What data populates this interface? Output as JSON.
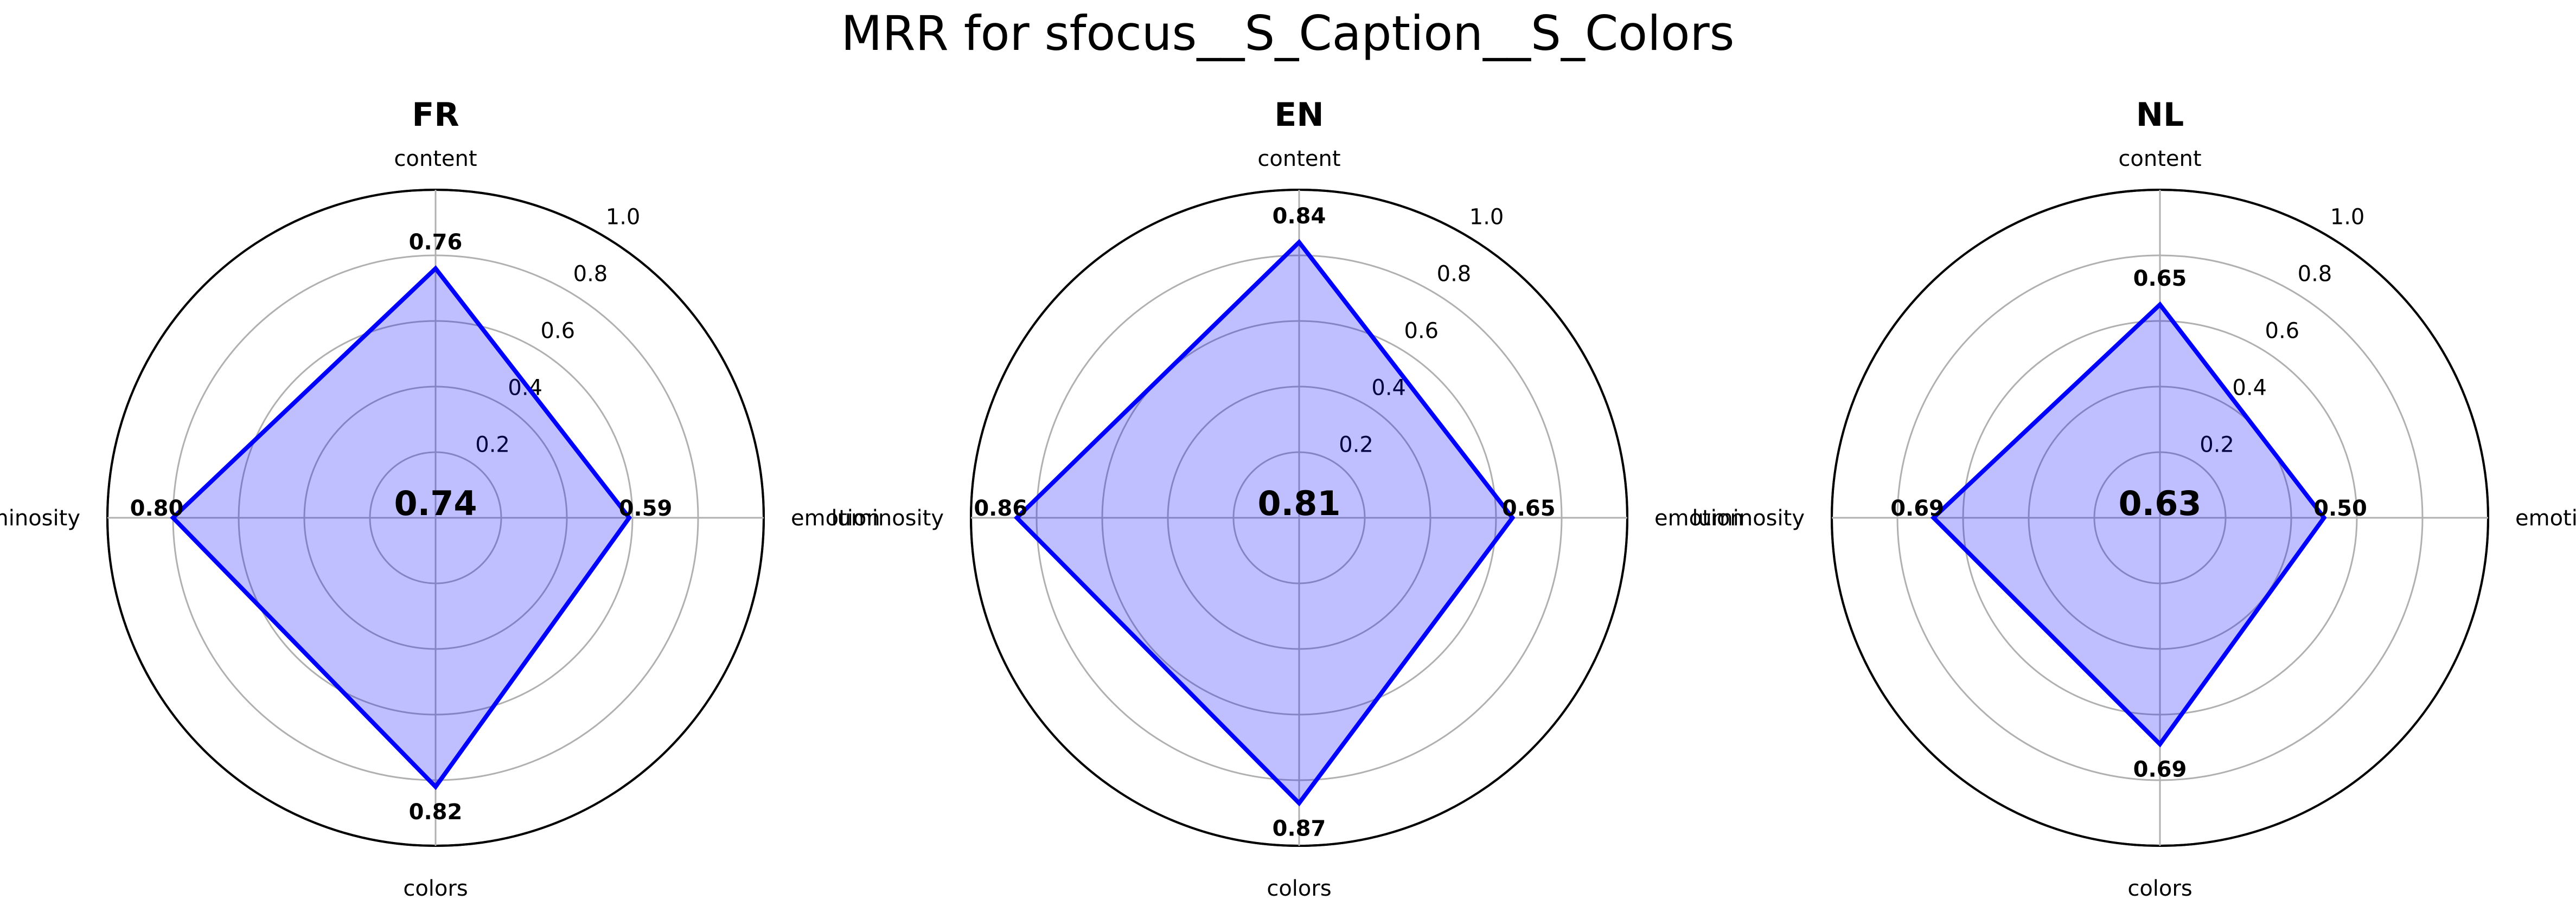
{
  "figure": {
    "title": "MRR for sfocus__S_Caption__S_Colors"
  },
  "colors": {
    "series": "#0000ff",
    "fill": "#0000ff"
  },
  "chart_data": [
    {
      "type": "radar",
      "title": "FR",
      "axes": [
        "content",
        "emotion",
        "colors",
        "luminosity"
      ],
      "values": [
        0.76,
        0.59,
        0.82,
        0.8
      ],
      "value_labels": [
        "0.76",
        "0.59",
        "0.82",
        "0.80"
      ],
      "center_value": "0.74",
      "rlim": [
        0,
        1.0
      ],
      "rticks": [
        "0.2",
        "0.4",
        "0.6",
        "0.8",
        "1.0"
      ],
      "grid": true
    },
    {
      "type": "radar",
      "title": "EN",
      "axes": [
        "content",
        "emotion",
        "colors",
        "luminosity"
      ],
      "values": [
        0.84,
        0.65,
        0.87,
        0.86
      ],
      "value_labels": [
        "0.84",
        "0.65",
        "0.87",
        "0.86"
      ],
      "center_value": "0.81",
      "rlim": [
        0,
        1.0
      ],
      "rticks": [
        "0.2",
        "0.4",
        "0.6",
        "0.8",
        "1.0"
      ],
      "grid": true
    },
    {
      "type": "radar",
      "title": "NL",
      "axes": [
        "content",
        "emotion",
        "colors",
        "luminosity"
      ],
      "values": [
        0.65,
        0.5,
        0.69,
        0.69
      ],
      "value_labels": [
        "0.65",
        "0.50",
        "0.69",
        "0.69"
      ],
      "center_value": "0.63",
      "rlim": [
        0,
        1.0
      ],
      "rticks": [
        "0.2",
        "0.4",
        "0.6",
        "0.8",
        "1.0"
      ],
      "grid": true
    }
  ]
}
